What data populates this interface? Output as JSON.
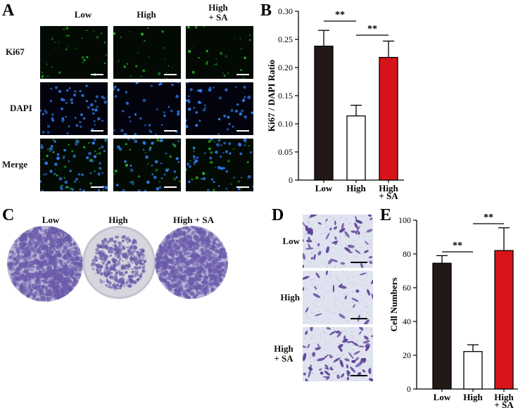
{
  "panels": {
    "A": {
      "letter": "A",
      "columns": [
        "Low",
        "High",
        "High\n+ SA"
      ],
      "rows": [
        "Ki67",
        "DAPI",
        "Merge"
      ]
    },
    "B": {
      "letter": "B"
    },
    "C": {
      "letter": "C",
      "columns": [
        "Low",
        "High",
        "High + SA"
      ]
    },
    "D": {
      "letter": "D",
      "rows": [
        "Low",
        "High",
        "High\n+ SA"
      ]
    },
    "E": {
      "letter": "E"
    }
  },
  "colors": {
    "low_bar": "#231815",
    "high_bar": "#ffffff",
    "high_sa_bar": "#d7141a",
    "ki67_green": "#2bd62b",
    "dapi_blue": "#2f7cf0",
    "crystal_violet": "#6a5aaa"
  },
  "chart_data": [
    {
      "panel": "B",
      "type": "bar",
      "categories": [
        "Low",
        "High",
        "High\n+ SA"
      ],
      "values": [
        0.238,
        0.114,
        0.218
      ],
      "errors": [
        0.028,
        0.019,
        0.029
      ],
      "xlabel": "",
      "ylabel": "Ki67 / DAPI Ratio",
      "ylim": [
        0,
        0.3
      ],
      "yticks": [
        "0",
        "0.05",
        "0.10",
        "0.15",
        "0.20",
        "0.25",
        "0.30"
      ],
      "significance": [
        {
          "pair": [
            "Low",
            "High"
          ],
          "label": "**"
        },
        {
          "pair": [
            "High",
            "High\n+ SA"
          ],
          "label": "**"
        }
      ]
    },
    {
      "panel": "E",
      "type": "bar",
      "categories": [
        "Low",
        "High",
        "High\n+ SA"
      ],
      "values": [
        74.5,
        22.2,
        82
      ],
      "errors": [
        4.5,
        4.0,
        13.5
      ],
      "xlabel": "",
      "ylabel": "Cell Numbers",
      "ylim": [
        0,
        100
      ],
      "yticks": [
        "0",
        "20",
        "40",
        "60",
        "80",
        "100"
      ],
      "significance": [
        {
          "pair": [
            "Low",
            "High"
          ],
          "label": "**"
        },
        {
          "pair": [
            "High",
            "High\n+ SA"
          ],
          "label": "**"
        }
      ]
    }
  ]
}
